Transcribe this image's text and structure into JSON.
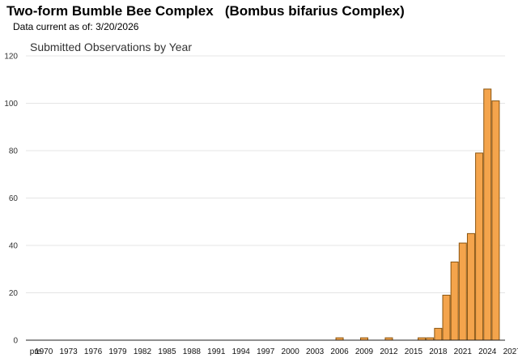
{
  "header": {
    "title": "Two-form Bumble Bee Complex   (Bombus bifarius Complex)",
    "as_of_label": "Data current as of:",
    "as_of_date": "3/20/2026"
  },
  "colors": {
    "bar_fill": "#f4a44c",
    "bar_stroke": "#8a5510",
    "grid": "#e4e4e4",
    "axis": "#222222",
    "text": "#333333"
  },
  "chart_data": {
    "type": "bar",
    "title": "Submitted Observations by Year",
    "xlabel": "",
    "ylabel": "",
    "ylim": [
      0,
      120
    ],
    "y_ticks": [
      0,
      20,
      40,
      60,
      80,
      100,
      120
    ],
    "x_tick_labels": [
      "pre",
      "1970",
      "1973",
      "1976",
      "1979",
      "1982",
      "1985",
      "1988",
      "1991",
      "1994",
      "1997",
      "2000",
      "2003",
      "2006",
      "2009",
      "2012",
      "2015",
      "2018",
      "2021",
      "2024",
      "2027"
    ],
    "grid": true,
    "categories": [
      "pre",
      "1970",
      "1971",
      "1972",
      "1973",
      "1974",
      "1975",
      "1976",
      "1977",
      "1978",
      "1979",
      "1980",
      "1981",
      "1982",
      "1983",
      "1984",
      "1985",
      "1986",
      "1987",
      "1988",
      "1989",
      "1990",
      "1991",
      "1992",
      "1993",
      "1994",
      "1995",
      "1996",
      "1997",
      "1998",
      "1999",
      "2000",
      "2001",
      "2002",
      "2003",
      "2004",
      "2005",
      "2006",
      "2007",
      "2008",
      "2009",
      "2010",
      "2011",
      "2012",
      "2013",
      "2014",
      "2015",
      "2016",
      "2017",
      "2018",
      "2019",
      "2020",
      "2021",
      "2022",
      "2023",
      "2024",
      "2025",
      "2026",
      "2027"
    ],
    "values": [
      0,
      0,
      0,
      0,
      0,
      0,
      0,
      0,
      0,
      0,
      0,
      0,
      0,
      0,
      0,
      0,
      0,
      0,
      0,
      0,
      0,
      0,
      0,
      0,
      0,
      0,
      0,
      0,
      0,
      0,
      0,
      0,
      0,
      0,
      0,
      0,
      0,
      1,
      0,
      0,
      1,
      0,
      0,
      1,
      0,
      0,
      0,
      1,
      1,
      5,
      19,
      33,
      41,
      45,
      79,
      106,
      101,
      0,
      0
    ]
  }
}
